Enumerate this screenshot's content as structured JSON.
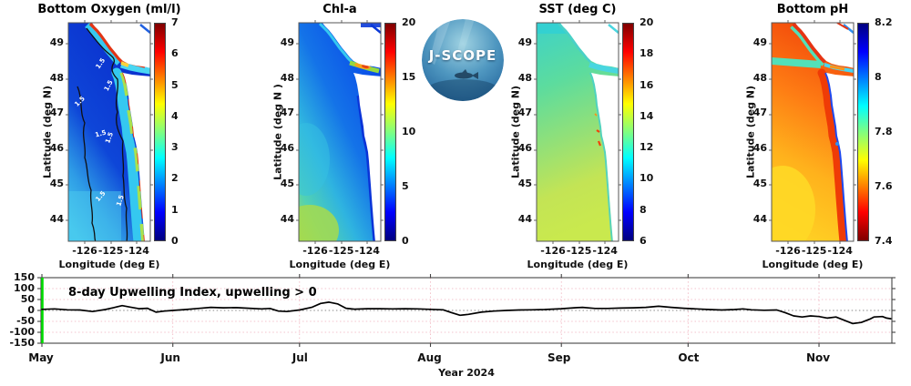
{
  "logo": {
    "text": "J-SCOPE"
  },
  "panels": [
    {
      "title": "Bottom Oxygen (ml/l)",
      "ylabel": "Latitude (deg N)",
      "xlabel": "Longitude (deg E)",
      "yticks": [
        "49",
        "48",
        "47",
        "46",
        "45",
        "44"
      ],
      "xticks": [
        "-126",
        "-125",
        "-124"
      ],
      "contour_label": "1.5",
      "colorbar": {
        "ticks": [
          "7",
          "6",
          "5",
          "4",
          "3",
          "2",
          "1",
          "0"
        ],
        "min": 0,
        "max": 7,
        "colormap": "jet",
        "reversed": false
      }
    },
    {
      "title": "Chl-a",
      "ylabel": "Latitude (deg N )",
      "xlabel": "Longitude (deg E)",
      "yticks": [
        "49",
        "48",
        "47",
        "46",
        "45",
        "44"
      ],
      "xticks": [
        "-126",
        "-125",
        "-124"
      ],
      "colorbar": {
        "ticks": [
          "20",
          "15",
          "10",
          "5",
          "0"
        ],
        "min": 0,
        "max": 20,
        "colormap": "jet",
        "reversed": false
      }
    },
    {
      "title": "SST (deg C)",
      "ylabel": "Latitude (deg N)",
      "xlabel": "Longitude (deg E)",
      "yticks": [
        "49",
        "48",
        "47",
        "46",
        "45",
        "44"
      ],
      "xticks": [
        "-126",
        "-125",
        "-124"
      ],
      "colorbar": {
        "ticks": [
          "20",
          "18",
          "16",
          "14",
          "12",
          "10",
          "8",
          "6"
        ],
        "min": 6,
        "max": 20,
        "colormap": "jet",
        "reversed": false
      }
    },
    {
      "title": "Bottom pH",
      "ylabel": "Latitude (deg N)",
      "xlabel": "Longitude (deg E)",
      "yticks": [
        "49",
        "48",
        "47",
        "46",
        "45",
        "44"
      ],
      "xticks": [
        "-126",
        "-125",
        "-124"
      ],
      "colorbar": {
        "ticks": [
          "8.2",
          "8",
          "7.8",
          "7.6",
          "7.4"
        ],
        "min": 7.4,
        "max": 8.2,
        "colormap": "jet",
        "reversed": true
      }
    }
  ],
  "timeseries": {
    "title": "8-day Upwelling Index, upwelling > 0",
    "xlabel": "Year 2024",
    "yticks": [
      "150",
      "100",
      "50",
      "0",
      "-50",
      "-100",
      "-150"
    ],
    "months": [
      "May",
      "Jun",
      "Jul",
      "Aug",
      "Sep",
      "Oct",
      "Nov"
    ]
  },
  "colors": {
    "upwelling_line": "#000000",
    "forecast_start_line": "#00dd00",
    "grid_pink": "#f0b0bc",
    "zero_line": "#8a8a8a",
    "axis": "#444444"
  },
  "chart_data": [
    {
      "type": "heatmap",
      "title": "Bottom Oxygen (ml/l)",
      "xlabel": "Longitude (deg E)",
      "ylabel": "Latitude (deg N)",
      "xlim": [
        -126.7,
        -123.0
      ],
      "ylim": [
        43.4,
        49.6
      ],
      "colorbar_range": [
        0,
        7
      ],
      "colormap": "jet",
      "contour_level": 1.5,
      "summary": "Deep blue (0.5-1.5 ml/l) hypoxic water offshore bounded by black 1.5 contour; cyan-green band on shelf; red high-oxygen fringe (5-7) along Vancouver Island coast, Strait of Juan de Fuca edges and nearshore headlands."
    },
    {
      "type": "heatmap",
      "title": "Chl-a",
      "xlabel": "Longitude (deg E)",
      "ylabel": "Latitude (deg N)",
      "xlim": [
        -126.7,
        -123.0
      ],
      "ylim": [
        43.4,
        49.6
      ],
      "colorbar_range": [
        0,
        20
      ],
      "colormap": "jet",
      "summary": "Low chlorophyll (1-3) dark blue offshore north; cyan 4-6 mid-shelf; yellow-green 8-12 in southwest corner; orange-red bloom patch (15-20) in Strait of Juan de Fuca near 48.3N."
    },
    {
      "type": "heatmap",
      "title": "SST (deg C)",
      "xlabel": "Longitude (deg E)",
      "ylabel": "Latitude (deg N)",
      "xlim": [
        -126.7,
        -123.0
      ],
      "ylim": [
        43.4,
        49.6
      ],
      "colorbar_range": [
        6,
        20
      ],
      "colormap": "jet",
      "summary": "Cyan ~12C in north grading to green-yellow 13-15C in central and southern region; small orange-red warm spots ~16-18C in coastal estuaries near 46.5-47N."
    },
    {
      "type": "heatmap",
      "title": "Bottom pH",
      "xlabel": "Longitude (deg E)",
      "ylabel": "Latitude (deg N)",
      "xlim": [
        -126.7,
        -123.0
      ],
      "ylim": [
        43.4,
        49.6
      ],
      "colorbar_range": [
        7.4,
        8.2
      ],
      "colormap": "jet reversed (blue = high pH)",
      "summary": "Orange-yellow 7.55-7.65 offshore, red ~7.5 band on mid shelf and along Vancouver Island; blue strip ~8.0 hugging the coast, inlets and Strait of Juan de Fuca; cyan-green band near 48.8N."
    },
    {
      "type": "line",
      "title": "8-day Upwelling Index, upwelling > 0",
      "xlabel": "Year 2024",
      "x_unit": "days since May 1, 2024",
      "ylim": [
        -150,
        150
      ],
      "yticks": [
        150,
        100,
        50,
        0,
        -50,
        -100,
        -150
      ],
      "month_labels": [
        "May",
        "Jun",
        "Jul",
        "Aug",
        "Sep",
        "Oct",
        "Nov"
      ],
      "month_starts_day": [
        0,
        31,
        61,
        92,
        123,
        153,
        184
      ],
      "zero_reference_line": true,
      "forecast_start_marker_day": 0,
      "points": [
        [
          0,
          5
        ],
        [
          3,
          7
        ],
        [
          6,
          3
        ],
        [
          9,
          2
        ],
        [
          12,
          -5
        ],
        [
          15,
          4
        ],
        [
          17,
          13
        ],
        [
          19,
          22
        ],
        [
          21,
          15
        ],
        [
          23,
          8
        ],
        [
          25,
          10
        ],
        [
          27,
          -8
        ],
        [
          29,
          -3
        ],
        [
          31,
          0
        ],
        [
          34,
          4
        ],
        [
          37,
          9
        ],
        [
          40,
          14
        ],
        [
          43,
          12
        ],
        [
          46,
          13
        ],
        [
          49,
          10
        ],
        [
          52,
          7
        ],
        [
          54,
          9
        ],
        [
          56,
          -3
        ],
        [
          58,
          -5
        ],
        [
          61,
          2
        ],
        [
          64,
          15
        ],
        [
          66,
          32
        ],
        [
          68,
          38
        ],
        [
          70,
          30
        ],
        [
          72,
          10
        ],
        [
          74,
          6
        ],
        [
          77,
          8
        ],
        [
          80,
          8
        ],
        [
          83,
          7
        ],
        [
          86,
          8
        ],
        [
          89,
          7
        ],
        [
          92,
          5
        ],
        [
          95,
          3
        ],
        [
          97,
          -10
        ],
        [
          99,
          -22
        ],
        [
          101,
          -18
        ],
        [
          104,
          -8
        ],
        [
          107,
          -3
        ],
        [
          110,
          0
        ],
        [
          113,
          2
        ],
        [
          116,
          3
        ],
        [
          119,
          4
        ],
        [
          123,
          8
        ],
        [
          126,
          12
        ],
        [
          128,
          14
        ],
        [
          131,
          9
        ],
        [
          134,
          9
        ],
        [
          137,
          11
        ],
        [
          140,
          12
        ],
        [
          143,
          14
        ],
        [
          146,
          19
        ],
        [
          149,
          14
        ],
        [
          152,
          10
        ],
        [
          155,
          7
        ],
        [
          158,
          4
        ],
        [
          161,
          2
        ],
        [
          164,
          4
        ],
        [
          166,
          7
        ],
        [
          168,
          3
        ],
        [
          171,
          1
        ],
        [
          174,
          2
        ],
        [
          176,
          -10
        ],
        [
          178,
          -25
        ],
        [
          180,
          -30
        ],
        [
          182,
          -25
        ],
        [
          184,
          -28
        ],
        [
          186,
          -35
        ],
        [
          188,
          -30
        ],
        [
          190,
          -45
        ],
        [
          192,
          -60
        ],
        [
          194,
          -55
        ],
        [
          196,
          -40
        ],
        [
          197,
          -30
        ],
        [
          199,
          -28
        ],
        [
          200,
          -35
        ],
        [
          201,
          -38
        ]
      ]
    }
  ]
}
